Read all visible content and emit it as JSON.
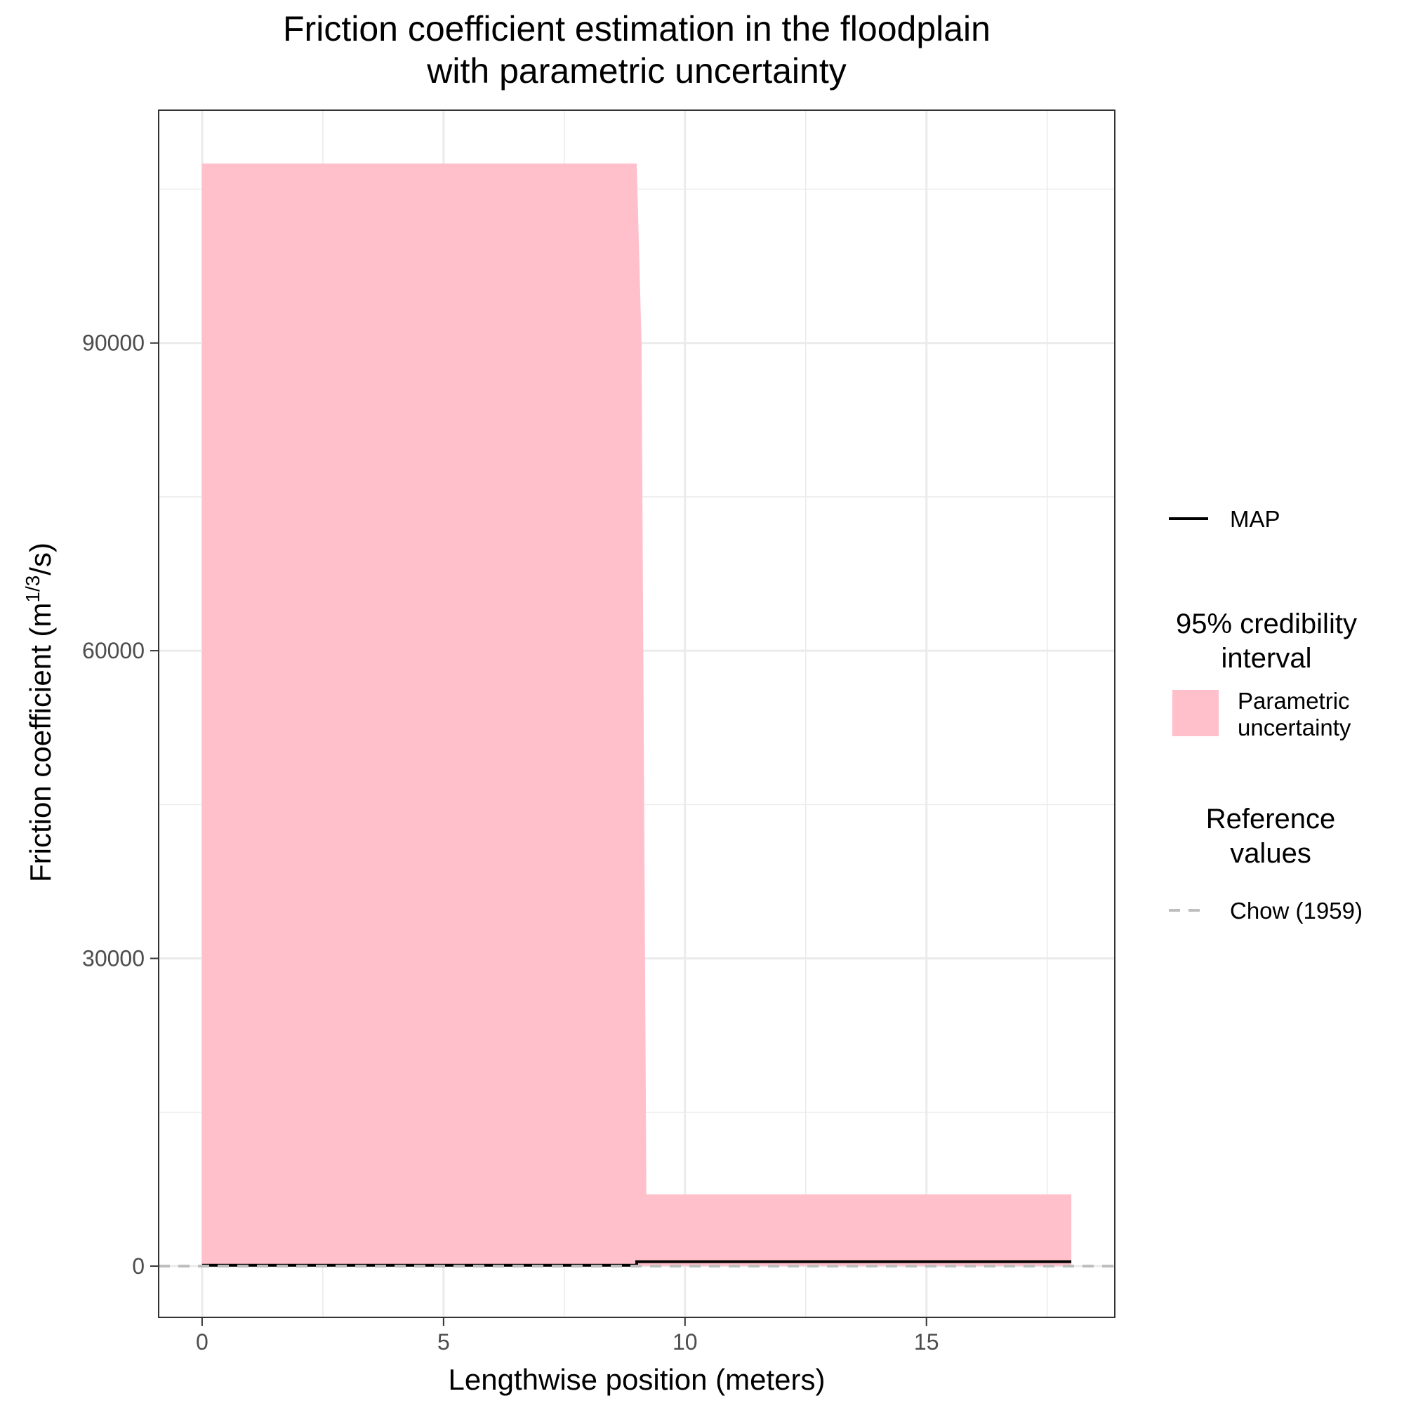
{
  "chart_data": {
    "type": "area",
    "title_lines": [
      "Friction coefficient estimation in the floodplain",
      "with parametric uncertainty"
    ],
    "xlabel": "Lengthwise position (meters)",
    "ylabel_main": "Friction coefficient (m",
    "ylabel_sup": "1/3",
    "ylabel_tail": "/s)",
    "xlim": [
      -0.9,
      18.9
    ],
    "ylim": [
      -5000,
      112700
    ],
    "x_ticks": [
      0,
      5,
      10,
      15
    ],
    "x_tick_labels": [
      "0",
      "5",
      "10",
      "15"
    ],
    "y_ticks": [
      0,
      30000,
      60000,
      90000
    ],
    "y_tick_labels": [
      "0",
      "30000",
      "60000",
      "90000"
    ],
    "x_minor": [
      2.5,
      7.5,
      12.5,
      17.5
    ],
    "y_minor": [
      15000,
      45000,
      75000,
      105000
    ],
    "grid": true,
    "legend_position": "right",
    "series": [
      {
        "name": "Parametric uncertainty",
        "kind": "ribbon",
        "color": "#ffc0cb",
        "x": [
          0,
          9,
          9.1,
          9.2,
          18
        ],
        "lower": [
          0,
          0,
          0,
          0,
          0
        ],
        "upper": [
          107500,
          107500,
          90000,
          7000,
          7000
        ]
      },
      {
        "name": "MAP",
        "kind": "line",
        "color": "#000000",
        "x": [
          0,
          9,
          9,
          18
        ],
        "y": [
          80,
          80,
          430,
          430
        ]
      },
      {
        "name": "Chow (1959)",
        "kind": "hline-dashed",
        "color": "#bebebe",
        "y": 0
      }
    ],
    "legend": {
      "map_label": "MAP",
      "interval_title_lines": [
        "95% credibility",
        "interval"
      ],
      "interval_label_lines": [
        "Parametric",
        "uncertainty"
      ],
      "reference_title_lines": [
        "Reference",
        "values"
      ],
      "reference_label": "Chow (1959)"
    }
  }
}
